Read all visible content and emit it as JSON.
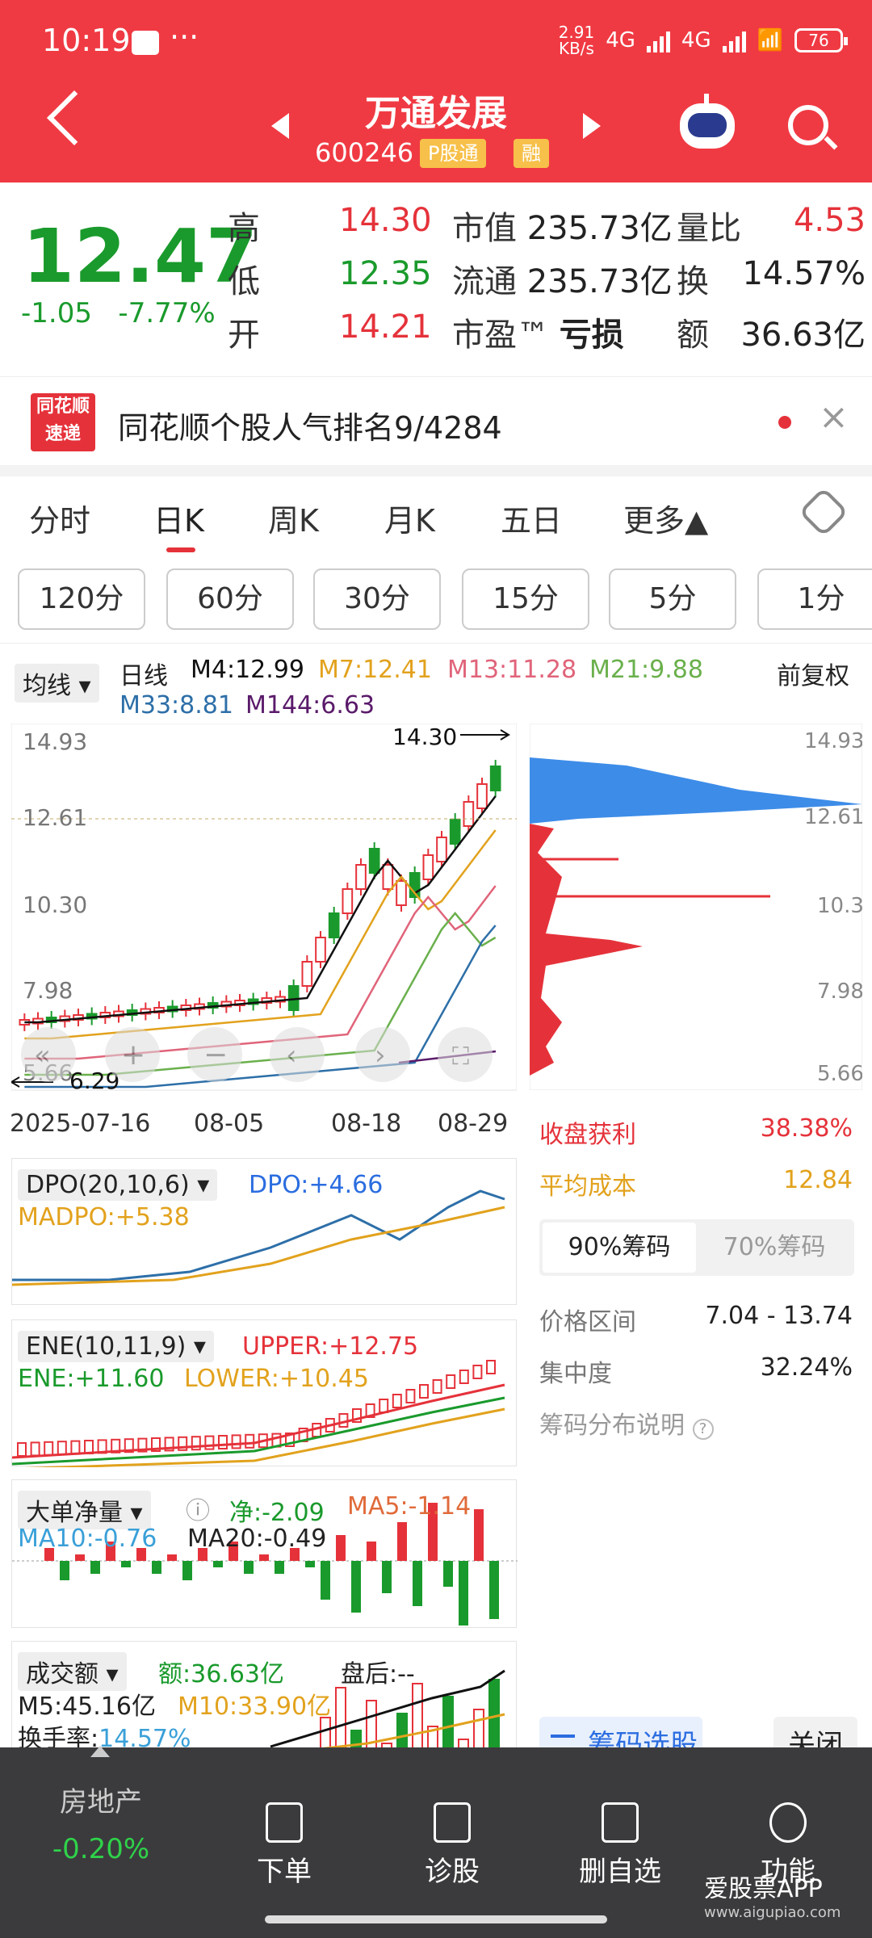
{
  "status": {
    "time": "10:19",
    "speed_top": "2.91",
    "speed_bot": "KB/s",
    "net1": "4G",
    "net2": "4G",
    "battery": "76"
  },
  "header": {
    "title": "万通发展",
    "code": "600246",
    "tag1": "P股通",
    "tag2": "融"
  },
  "quote": {
    "price": "12.47",
    "change": "-1.05",
    "change_pct": "-7.77%",
    "high_label": "高",
    "high": "14.30",
    "low_label": "低",
    "low": "12.35",
    "open_label": "开",
    "open": "14.21",
    "mcap_label": "市值",
    "mcap": "235.73亿",
    "float_label": "流通",
    "float": "235.73亿",
    "pe_label": "市盈™",
    "pe": "亏损",
    "vr_label": "量比",
    "vr": "4.53",
    "turn_label": "换",
    "turn": "14.57%",
    "amt_label": "额",
    "amt": "36.63亿"
  },
  "notice": {
    "logo_top": "同花顺",
    "logo_bot": "速递",
    "text": "同花顺个股人气排名9/4284"
  },
  "tabs": [
    "分时",
    "日K",
    "周K",
    "月K",
    "五日",
    "更多▲"
  ],
  "periods": [
    "120分",
    "60分",
    "30分",
    "15分",
    "5分",
    "1分"
  ],
  "ma": {
    "selector": "均线",
    "type": "日线",
    "m4": "M4:12.99",
    "m7": "M7:12.41",
    "m13": "M13:11.28",
    "m21": "M21:9.88",
    "m33": "M33:8.81",
    "m144": "M144:6.63",
    "adj": "前复权"
  },
  "kchart": {
    "y_ticks": [
      "14.93",
      "12.61",
      "10.30",
      "7.98",
      "5.66"
    ],
    "high_mark": "14.30",
    "low_mark": "6.29",
    "dates": [
      "2025-07-16",
      "08-05",
      "08-18",
      "08-29"
    ],
    "chip_ticks": [
      "14.93",
      "12.61",
      "10.3",
      "7.98",
      "5.66"
    ]
  },
  "chips": {
    "profit_label": "收盘获利",
    "profit": "38.38%",
    "cost_label": "平均成本",
    "cost": "12.84",
    "tab90": "90%筹码",
    "tab70": "70%筹码",
    "range_label": "价格区间",
    "range": "7.04 - 13.74",
    "conc_label": "集中度",
    "conc": "32.24%",
    "explain": "筹码分布说明",
    "select_btn": "筹码选股",
    "close_btn": "关闭"
  },
  "dpo": {
    "name": "DPO(20,10,6)",
    "dpo": "DPO:+4.66",
    "madpo": "MADPO:+5.38"
  },
  "ene": {
    "name": "ENE(10,11,9)",
    "upper": "UPPER:+12.75",
    "ene": "ENE:+11.60",
    "lower": "LOWER:+10.45"
  },
  "bigorder": {
    "name": "大单净量",
    "net": "净:-2.09",
    "ma5": "MA5:-1.14",
    "ma10": "MA10:-0.76",
    "ma20": "MA20:-0.49"
  },
  "volume": {
    "name": "成交额",
    "amt": "额:36.63亿",
    "after": "盘后:--",
    "m5": "M5:45.16亿",
    "m10": "M10:33.90亿",
    "turn_label": "换手率:",
    "turn": "14.57%"
  },
  "bottom": {
    "sector": "房地产",
    "sector_chg": "-0.20%",
    "items": [
      "下单",
      "诊股",
      "删自选",
      "功能"
    ],
    "watermark": "爱股票APP",
    "site": "www.aigupiao.com"
  }
}
